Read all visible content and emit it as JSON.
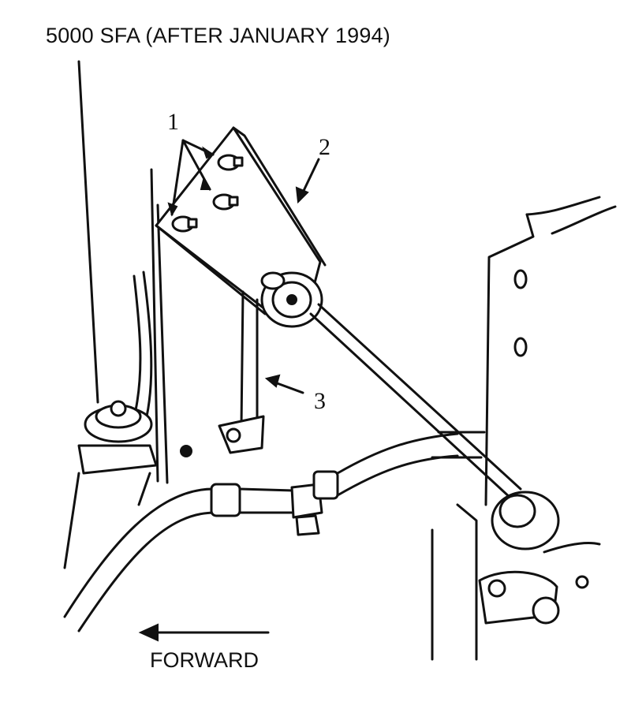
{
  "figure": {
    "title": "5000 SFA (AFTER JANUARY 1994)",
    "callouts": [
      {
        "number": "1",
        "part": "bolts"
      },
      {
        "number": "2",
        "part": "bracket"
      },
      {
        "number": "3",
        "part": "rod"
      }
    ],
    "direction_label": "FORWARD"
  }
}
